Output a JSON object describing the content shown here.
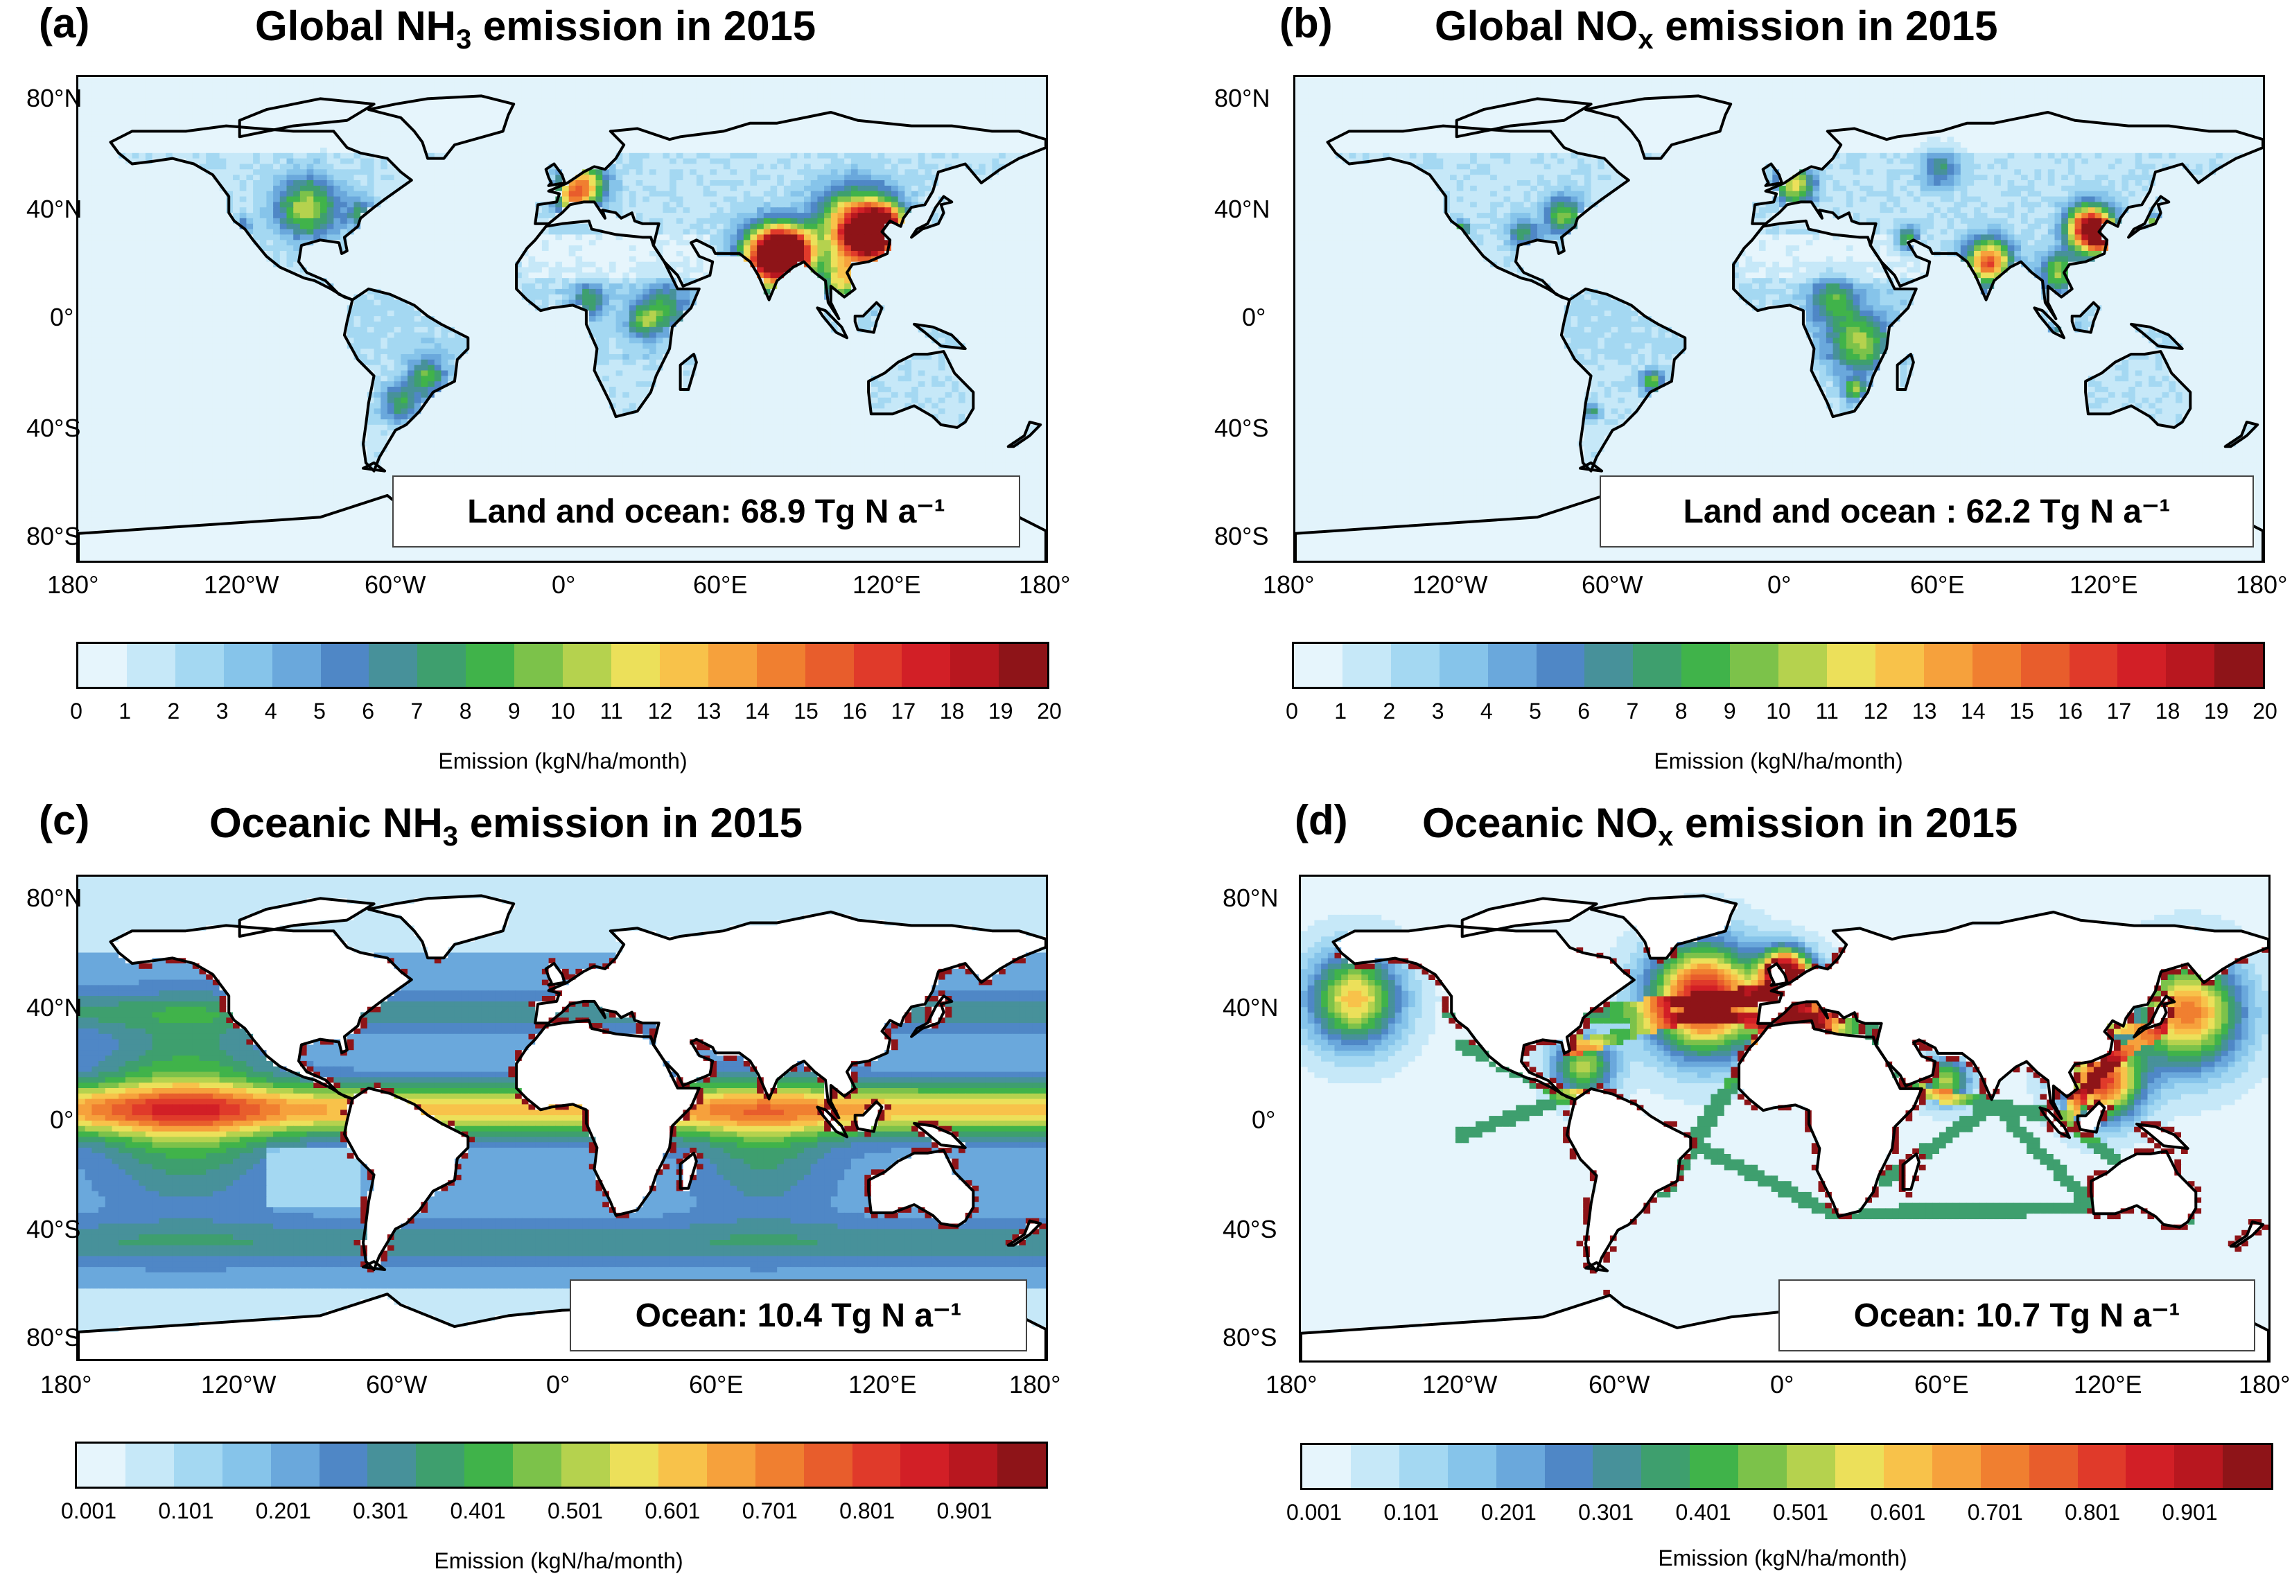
{
  "colors": {
    "ocean_low": "#e2f3fb",
    "palette": [
      "#e6f5fc",
      "#c6e8f8",
      "#a4d8f2",
      "#86c4ea",
      "#6aa8dc",
      "#4f87c6",
      "#47919a",
      "#3e9f6e",
      "#40b34a",
      "#7cc24a",
      "#b5d24e",
      "#ece05a",
      "#f8c24a",
      "#f6a13c",
      "#f07f30",
      "#e85d2c",
      "#e03a2a",
      "#d21f26",
      "#b8171f",
      "#8e1418"
    ]
  },
  "panels": [
    {
      "label": "(a)",
      "title_pre": "Global NH",
      "title_sub": "3",
      "title_post": " emission in 2015",
      "mode": "global",
      "total": "Land and ocean: 68.9 Tg N a⁻¹",
      "colorbar_ticks": [
        "0",
        "1",
        "2",
        "3",
        "4",
        "5",
        "6",
        "7",
        "8",
        "9",
        "10",
        "11",
        "12",
        "13",
        "14",
        "15",
        "16",
        "17",
        "18",
        "19",
        "20"
      ],
      "colorbar_label": "Emission (kgN/ha/month)"
    },
    {
      "label": "(b)",
      "title_pre": "Global NO",
      "title_sub": "x",
      "title_post": " emission in 2015",
      "mode": "global",
      "total": "Land and ocean : 62.2 Tg N a⁻¹",
      "colorbar_ticks": [
        "0",
        "1",
        "2",
        "3",
        "4",
        "5",
        "6",
        "7",
        "8",
        "9",
        "10",
        "11",
        "12",
        "13",
        "14",
        "15",
        "16",
        "17",
        "18",
        "19",
        "20"
      ],
      "colorbar_label": "Emission (kgN/ha/month)"
    },
    {
      "label": "(c)",
      "title_pre": "Oceanic NH",
      "title_sub": "3",
      "title_post": " emission in 2015",
      "mode": "ocean_nh3",
      "total": "Ocean: 10.4 Tg N a⁻¹",
      "colorbar_ticks": [
        "0.001",
        "0.101",
        "0.201",
        "0.301",
        "0.401",
        "0.501",
        "0.601",
        "0.701",
        "0.801",
        "0.901"
      ],
      "colorbar_label": "Emission (kgN/ha/month)"
    },
    {
      "label": "(d)",
      "title_pre": "Oceanic NO",
      "title_sub": "x",
      "title_post": " emission in 2015",
      "mode": "ocean_nox",
      "total": "Ocean: 10.7 Tg N a⁻¹",
      "colorbar_ticks": [
        "0.001",
        "0.101",
        "0.201",
        "0.301",
        "0.401",
        "0.501",
        "0.601",
        "0.701",
        "0.801",
        "0.901"
      ],
      "colorbar_label": "Emission (kgN/ha/month)"
    }
  ],
  "y_ticks": [
    "80°N",
    "40°N",
    "0°",
    "40°S",
    "80°S"
  ],
  "x_ticks": [
    "180°",
    "120°W",
    "60°W",
    "0°",
    "60°E",
    "120°E",
    "180°"
  ]
}
